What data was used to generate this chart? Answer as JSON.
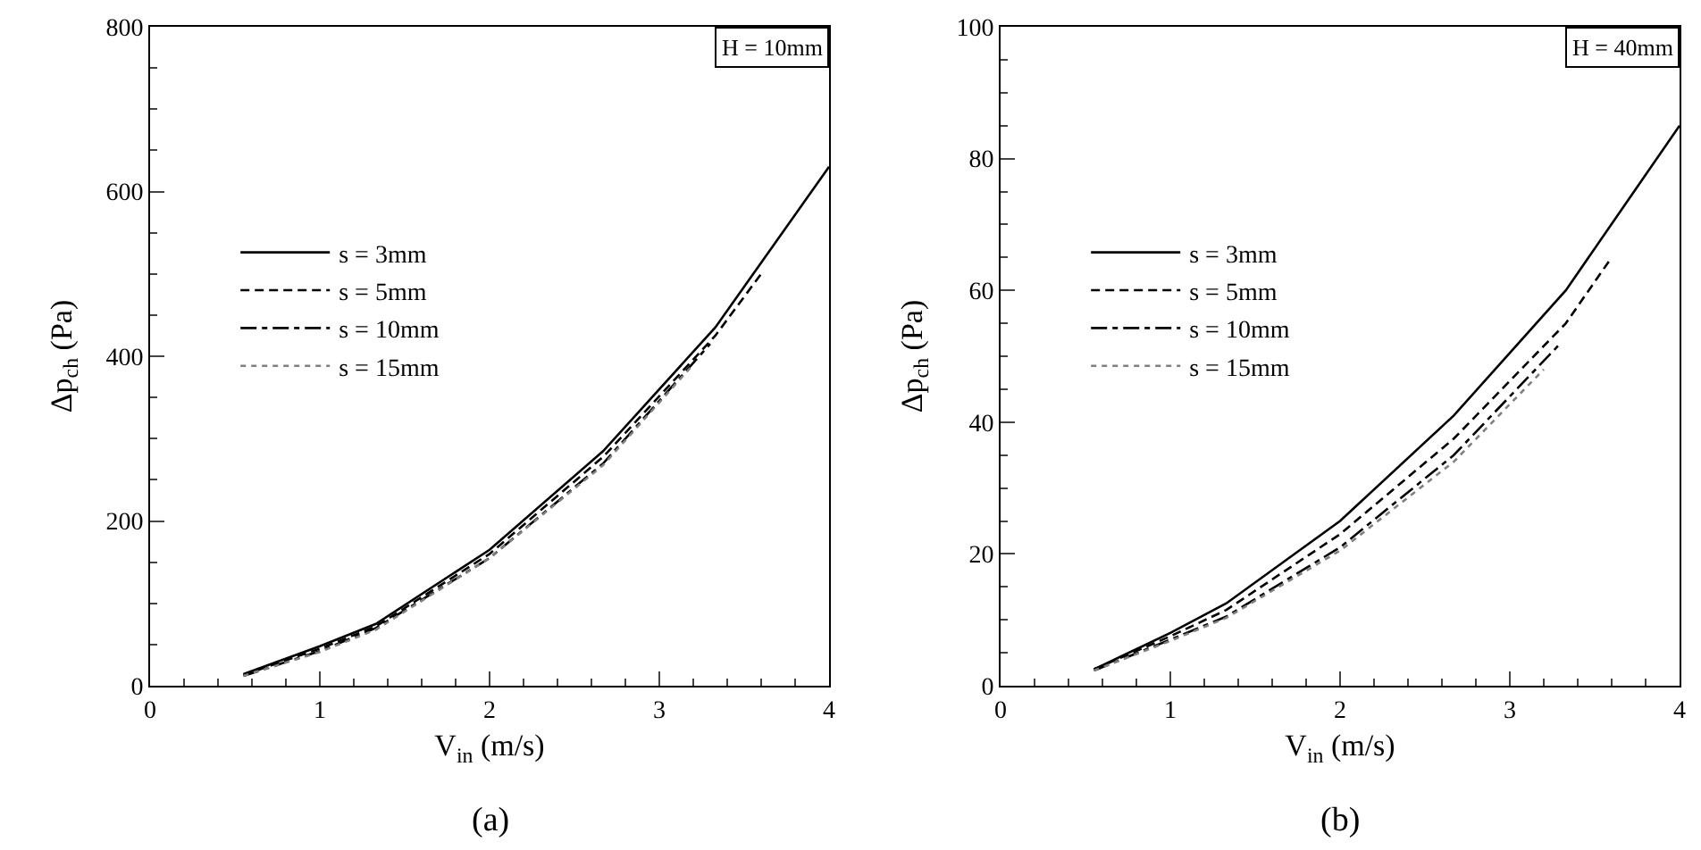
{
  "chart_data": [
    {
      "type": "line",
      "xlabel": "V$_{in}$ (m/s)",
      "ylabel": "Δp$_{ch}$ (Pa)",
      "annotations": [
        "H = 10mm",
        "(a)"
      ],
      "xlim": [
        0,
        4
      ],
      "ylim": [
        0,
        800
      ],
      "xticks": [
        0,
        {
          "value": 0.2,
          "label": null
        },
        {
          "value": 0.4,
          "label": null
        },
        {
          "value": 0.6,
          "label": null
        },
        {
          "value": 0.8,
          "label": null
        },
        1,
        {
          "value": 1.2,
          "label": null
        },
        {
          "value": 1.4,
          "label": null
        },
        {
          "value": 1.6,
          "label": null
        },
        {
          "value": 1.8,
          "label": null
        },
        2,
        {
          "value": 2.2,
          "label": null
        },
        {
          "value": 2.4,
          "label": null
        },
        {
          "value": 2.6,
          "label": null
        },
        {
          "value": 2.8,
          "label": null
        },
        3,
        {
          "value": 3.2,
          "label": null
        },
        {
          "value": 3.4,
          "label": null
        },
        {
          "value": 3.6,
          "label": null
        },
        {
          "value": 3.8,
          "label": null
        },
        4
      ],
      "yticks": [
        0,
        {
          "value": 50,
          "label": null
        },
        {
          "value": 100,
          "label": null
        },
        {
          "value": 150,
          "label": null
        },
        200,
        {
          "value": 250,
          "label": null
        },
        {
          "value": 300,
          "label": null
        },
        {
          "value": 350,
          "label": null
        },
        400,
        {
          "value": 450,
          "label": null
        },
        {
          "value": 500,
          "label": null
        },
        {
          "value": 550,
          "label": null
        },
        600,
        {
          "value": 650,
          "label": null
        },
        {
          "value": 700,
          "label": null
        },
        {
          "value": 750,
          "label": null
        },
        800
      ],
      "grid": false,
      "legend": "left",
      "marker": "none",
      "series": [
        {
          "name": "s = 3mm",
          "color": "#000000",
          "line_style": "solid",
          "x": [
            0.55,
            1,
            1.33,
            2,
            2.67,
            3.33,
            4
          ],
          "values": [
            14,
            48,
            75,
            165,
            285,
            435,
            630
          ]
        },
        {
          "name": "s = 5mm",
          "color": "#000000",
          "line_style": "dashed",
          "x": [
            0.55,
            1,
            1.33,
            2,
            2.67,
            3.33,
            3.6
          ],
          "values": [
            13,
            45,
            72,
            160,
            278,
            425,
            500
          ]
        },
        {
          "name": "s = 10mm",
          "color": "#000000",
          "line_style": "dashdot",
          "x": [
            0.55,
            1,
            1.33,
            2,
            2.67,
            3.3
          ],
          "values": [
            12,
            42,
            70,
            155,
            270,
            415
          ]
        },
        {
          "name": "s = 15mm",
          "color": "#808080",
          "line_style": "dotted",
          "x": [
            0.55,
            1,
            1.33,
            2,
            2.67,
            3.2
          ],
          "values": [
            12,
            41,
            68,
            155,
            268,
            390
          ]
        }
      ]
    },
    {
      "type": "line",
      "xlabel": "V$_{in}$ (m/s)",
      "ylabel": "Δp$_{ch}$ (Pa)",
      "annotations": [
        "H = 40mm",
        "(b)"
      ],
      "xlim": [
        0,
        4
      ],
      "ylim": [
        0,
        100
      ],
      "xticks": [
        0,
        {
          "value": 0.2,
          "label": null
        },
        {
          "value": 0.4,
          "label": null
        },
        {
          "value": 0.6,
          "label": null
        },
        {
          "value": 0.8,
          "label": null
        },
        1,
        {
          "value": 1.2,
          "label": null
        },
        {
          "value": 1.4,
          "label": null
        },
        {
          "value": 1.6,
          "label": null
        },
        {
          "value": 1.8,
          "label": null
        },
        2,
        {
          "value": 2.2,
          "label": null
        },
        {
          "value": 2.4,
          "label": null
        },
        {
          "value": 2.6,
          "label": null
        },
        {
          "value": 2.8,
          "label": null
        },
        3,
        {
          "value": 3.2,
          "label": null
        },
        {
          "value": 3.4,
          "label": null
        },
        {
          "value": 3.6,
          "label": null
        },
        {
          "value": 3.8,
          "label": null
        },
        4
      ],
      "yticks": [
        0,
        {
          "value": 5,
          "label": null
        },
        {
          "value": 10,
          "label": null
        },
        {
          "value": 15,
          "label": null
        },
        20,
        {
          "value": 25,
          "label": null
        },
        {
          "value": 30,
          "label": null
        },
        {
          "value": 35,
          "label": null
        },
        40,
        {
          "value": 45,
          "label": null
        },
        {
          "value": 50,
          "label": null
        },
        {
          "value": 55,
          "label": null
        },
        60,
        {
          "value": 65,
          "label": null
        },
        {
          "value": 70,
          "label": null
        },
        {
          "value": 75,
          "label": null
        },
        80,
        {
          "value": 85,
          "label": null
        },
        {
          "value": 90,
          "label": null
        },
        {
          "value": 95,
          "label": null
        },
        100
      ],
      "grid": false,
      "legend": "left",
      "marker": "none",
      "series": [
        {
          "name": "s = 3mm",
          "color": "#000000",
          "line_style": "solid",
          "x": [
            0.55,
            1,
            1.33,
            2,
            2.67,
            3.33,
            4
          ],
          "values": [
            2.5,
            8,
            12.5,
            25,
            41,
            60,
            85
          ]
        },
        {
          "name": "s = 5mm",
          "color": "#000000",
          "line_style": "dashed",
          "x": [
            0.55,
            1,
            1.33,
            2,
            2.67,
            3.33,
            3.6
          ],
          "values": [
            2.5,
            7.5,
            11.5,
            23,
            37.5,
            55,
            65
          ]
        },
        {
          "name": "s = 10mm",
          "color": "#000000",
          "line_style": "dashdot",
          "x": [
            0.55,
            1,
            1.33,
            2,
            2.67,
            3.3
          ],
          "values": [
            2.3,
            7,
            10.5,
            21,
            35,
            52
          ]
        },
        {
          "name": "s = 15mm",
          "color": "#808080",
          "line_style": "dotted",
          "x": [
            0.55,
            1,
            1.33,
            2,
            2.67,
            3.2
          ],
          "values": [
            2.3,
            6.8,
            10.3,
            20.5,
            34,
            48
          ]
        }
      ]
    }
  ]
}
